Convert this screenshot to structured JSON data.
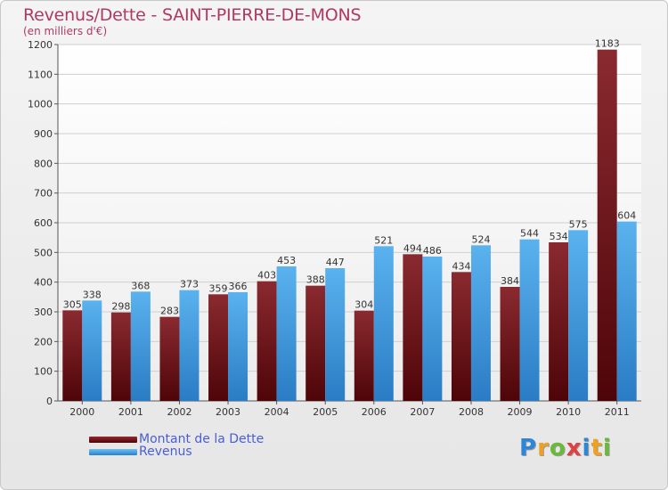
{
  "header": {
    "title": "Revenus/Dette - SAINT-PIERRE-DE-MONS",
    "subtitle": "(en milliers d'€)"
  },
  "chart_data": {
    "type": "bar",
    "title": "Revenus/Dette - SAINT-PIERRE-DE-MONS",
    "subtitle": "(en milliers d'€)",
    "categories": [
      "2000",
      "2001",
      "2002",
      "2003",
      "2004",
      "2005",
      "2006",
      "2007",
      "2008",
      "2009",
      "2010",
      "2011"
    ],
    "series": [
      {
        "name": "Montant de la Dette",
        "color": "#7a1c24",
        "values": [
          305,
          298,
          283,
          359,
          403,
          388,
          304,
          494,
          434,
          384,
          534,
          1183
        ]
      },
      {
        "name": "Revenus",
        "color": "#3d9be0",
        "values": [
          338,
          368,
          373,
          366,
          453,
          447,
          521,
          486,
          524,
          544,
          575,
          604
        ]
      }
    ],
    "ylim": [
      0,
      1200
    ],
    "yticks": [
      0,
      100,
      200,
      300,
      400,
      500,
      600,
      700,
      800,
      900,
      1000,
      1100,
      1200
    ],
    "grid": true,
    "legend_position": "bottom-left",
    "xlabel": "",
    "ylabel": ""
  },
  "legend": {
    "items": [
      {
        "label": "Montant de la Dette",
        "color": "#6e0d12"
      },
      {
        "label": "Revenus",
        "color": "#3d9be0"
      }
    ]
  },
  "logo": {
    "letters": [
      {
        "ch": "P",
        "color": "#2f86d6"
      },
      {
        "ch": "r",
        "color": "#f0a020"
      },
      {
        "ch": "o",
        "color": "#6aba3a"
      },
      {
        "ch": "x",
        "color": "#e04040"
      },
      {
        "ch": "i",
        "color": "#2f86d6"
      },
      {
        "ch": "t",
        "color": "#f0a020"
      },
      {
        "ch": "i",
        "color": "#6aba3a"
      }
    ]
  }
}
